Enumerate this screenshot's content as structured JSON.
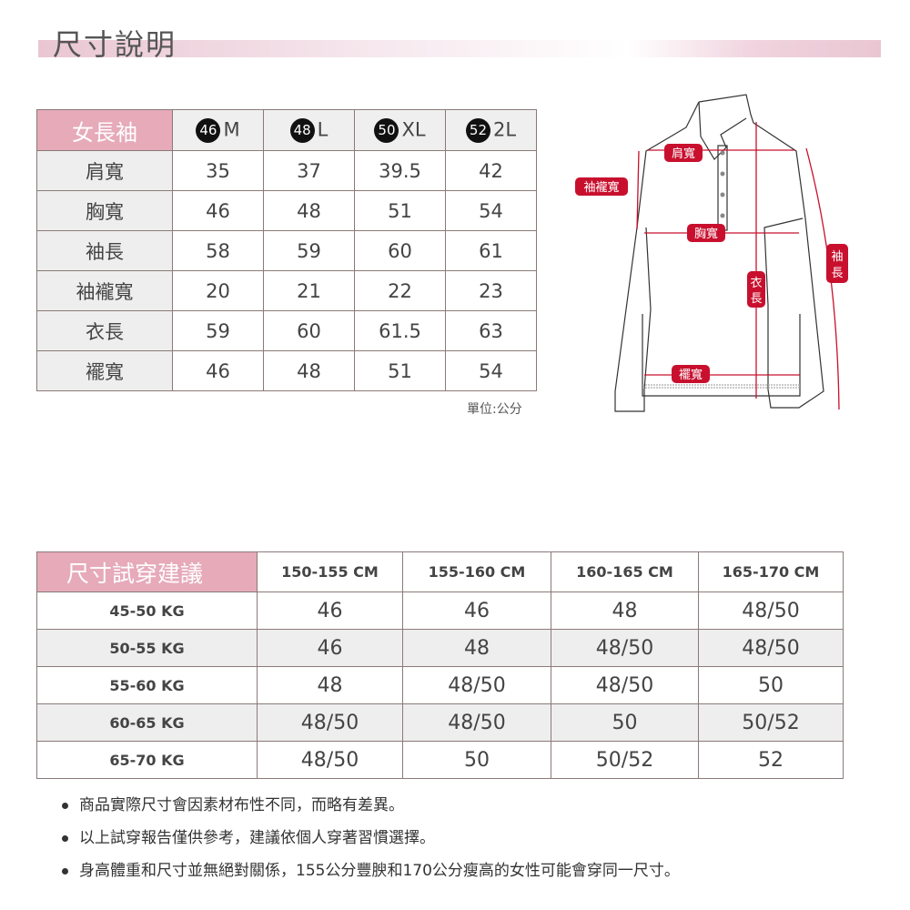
{
  "header": {
    "title": "尺寸說明"
  },
  "size_table": {
    "corner": "女長袖",
    "columns": [
      {
        "num": "46",
        "size": "M"
      },
      {
        "num": "48",
        "size": "L"
      },
      {
        "num": "50",
        "size": "XL"
      },
      {
        "num": "52",
        "size": "2L"
      }
    ],
    "rows": [
      {
        "label": "肩寬",
        "values": [
          "35",
          "37",
          "39.5",
          "42"
        ]
      },
      {
        "label": "胸寬",
        "values": [
          "46",
          "48",
          "51",
          "54"
        ]
      },
      {
        "label": "袖長",
        "values": [
          "58",
          "59",
          "60",
          "61"
        ]
      },
      {
        "label": "袖襱寬",
        "values": [
          "20",
          "21",
          "22",
          "23"
        ]
      },
      {
        "label": "衣長",
        "values": [
          "59",
          "60",
          "61.5",
          "63"
        ]
      },
      {
        "label": "襬寬",
        "values": [
          "46",
          "48",
          "51",
          "54"
        ]
      }
    ],
    "unit": "單位:公分"
  },
  "diagram": {
    "shoulder": "肩寬",
    "armhole": "袖襱寬",
    "chest": "胸寬",
    "length_1": "衣",
    "length_2": "長",
    "sleeve_1": "袖",
    "sleeve_2": "長",
    "hem": "襬寬",
    "accent": "#c8102e"
  },
  "fit_table": {
    "corner": "尺寸試穿建議",
    "columns": [
      "150-155 CM",
      "155-160 CM",
      "160-165 CM",
      "165-170 CM"
    ],
    "rows": [
      {
        "label": "45-50 KG",
        "values": [
          "46",
          "46",
          "48",
          "48/50"
        ]
      },
      {
        "label": "50-55 KG",
        "values": [
          "46",
          "48",
          "48/50",
          "48/50"
        ]
      },
      {
        "label": "55-60 KG",
        "values": [
          "48",
          "48/50",
          "48/50",
          "50"
        ]
      },
      {
        "label": "60-65 KG",
        "values": [
          "48/50",
          "48/50",
          "50",
          "50/52"
        ]
      },
      {
        "label": "65-70 KG",
        "values": [
          "48/50",
          "50",
          "50/52",
          "52"
        ]
      }
    ]
  },
  "notes": [
    "商品實際尺寸會因素材布性不同，而略有差異。",
    "以上試穿報告僅供參考，建議依個人穿著習慣選擇。",
    "身高體重和尺寸並無絕對關係，155公分豐腴和170公分瘦高的女性可能會穿同一尺寸。"
  ]
}
